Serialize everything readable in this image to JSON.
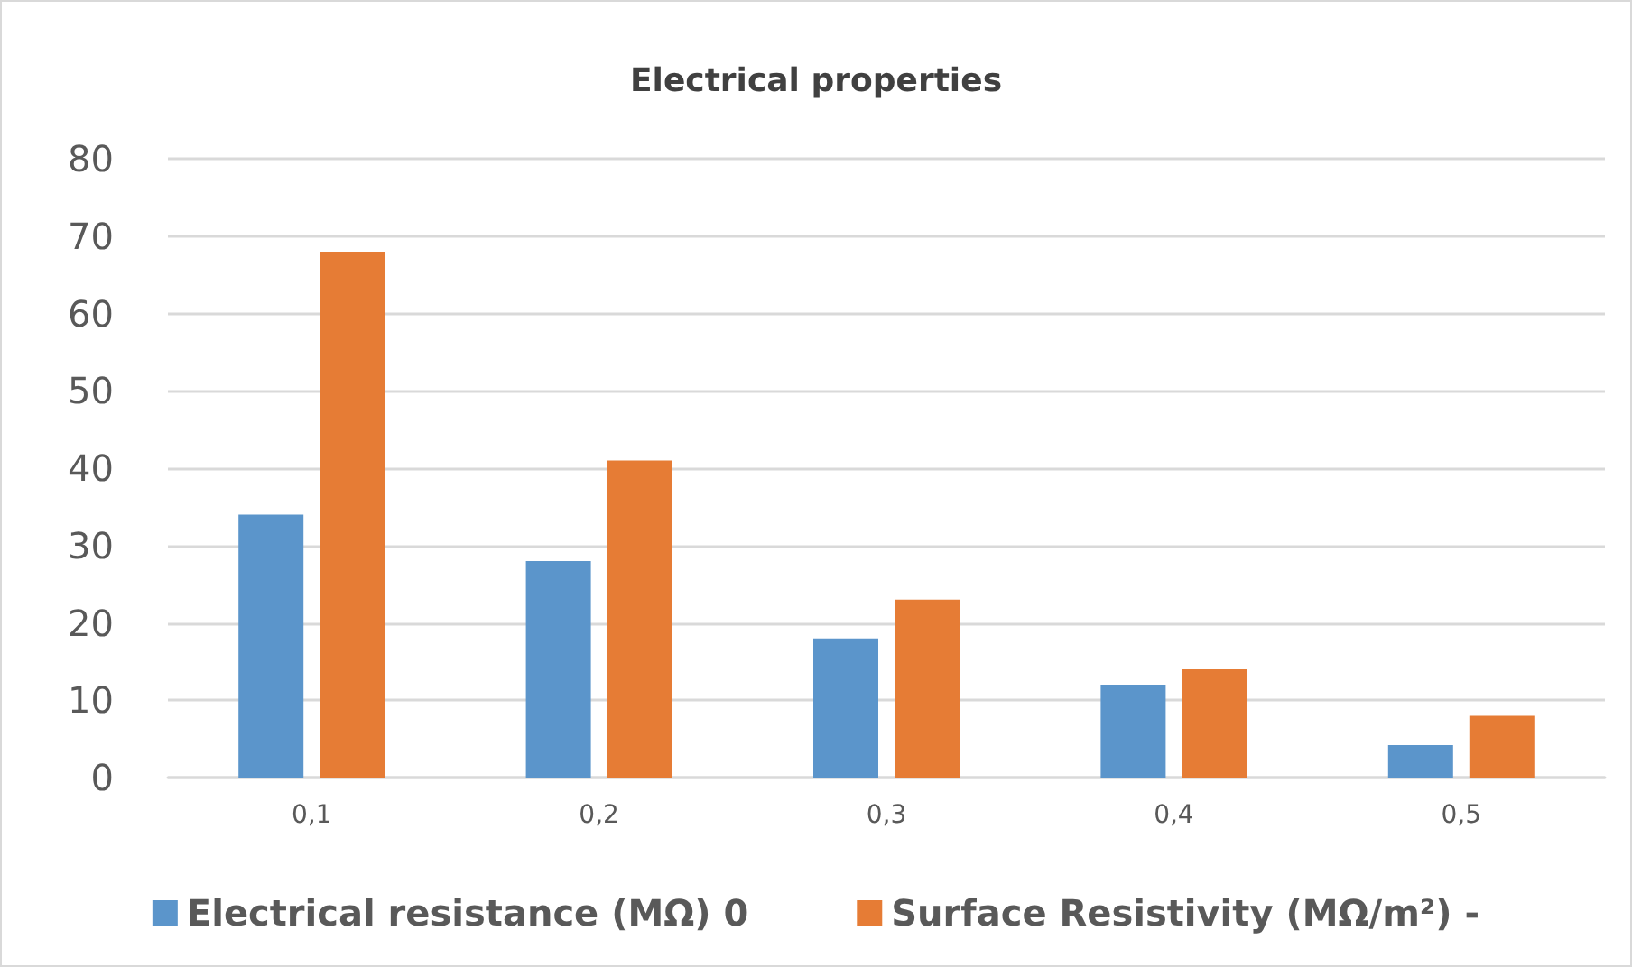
{
  "chart_data": {
    "type": "bar",
    "title": "Electrical properties",
    "categories": [
      "0,1",
      "0,2",
      "0,3",
      "0,4",
      "0,5"
    ],
    "series": [
      {
        "name": "Electrical resistance (MΩ) 0",
        "color": "#5b95cb",
        "values": [
          34,
          28,
          18,
          12,
          4.2
        ]
      },
      {
        "name": "Surface Resistivity (MΩ/m²) -",
        "color": "#e67c35",
        "values": [
          68,
          41,
          23,
          14,
          8
        ]
      }
    ],
    "ylim": [
      0,
      80
    ],
    "yticks": [
      0,
      10,
      20,
      30,
      40,
      50,
      60,
      70,
      80
    ],
    "grid": "y",
    "legend": "bottom"
  }
}
